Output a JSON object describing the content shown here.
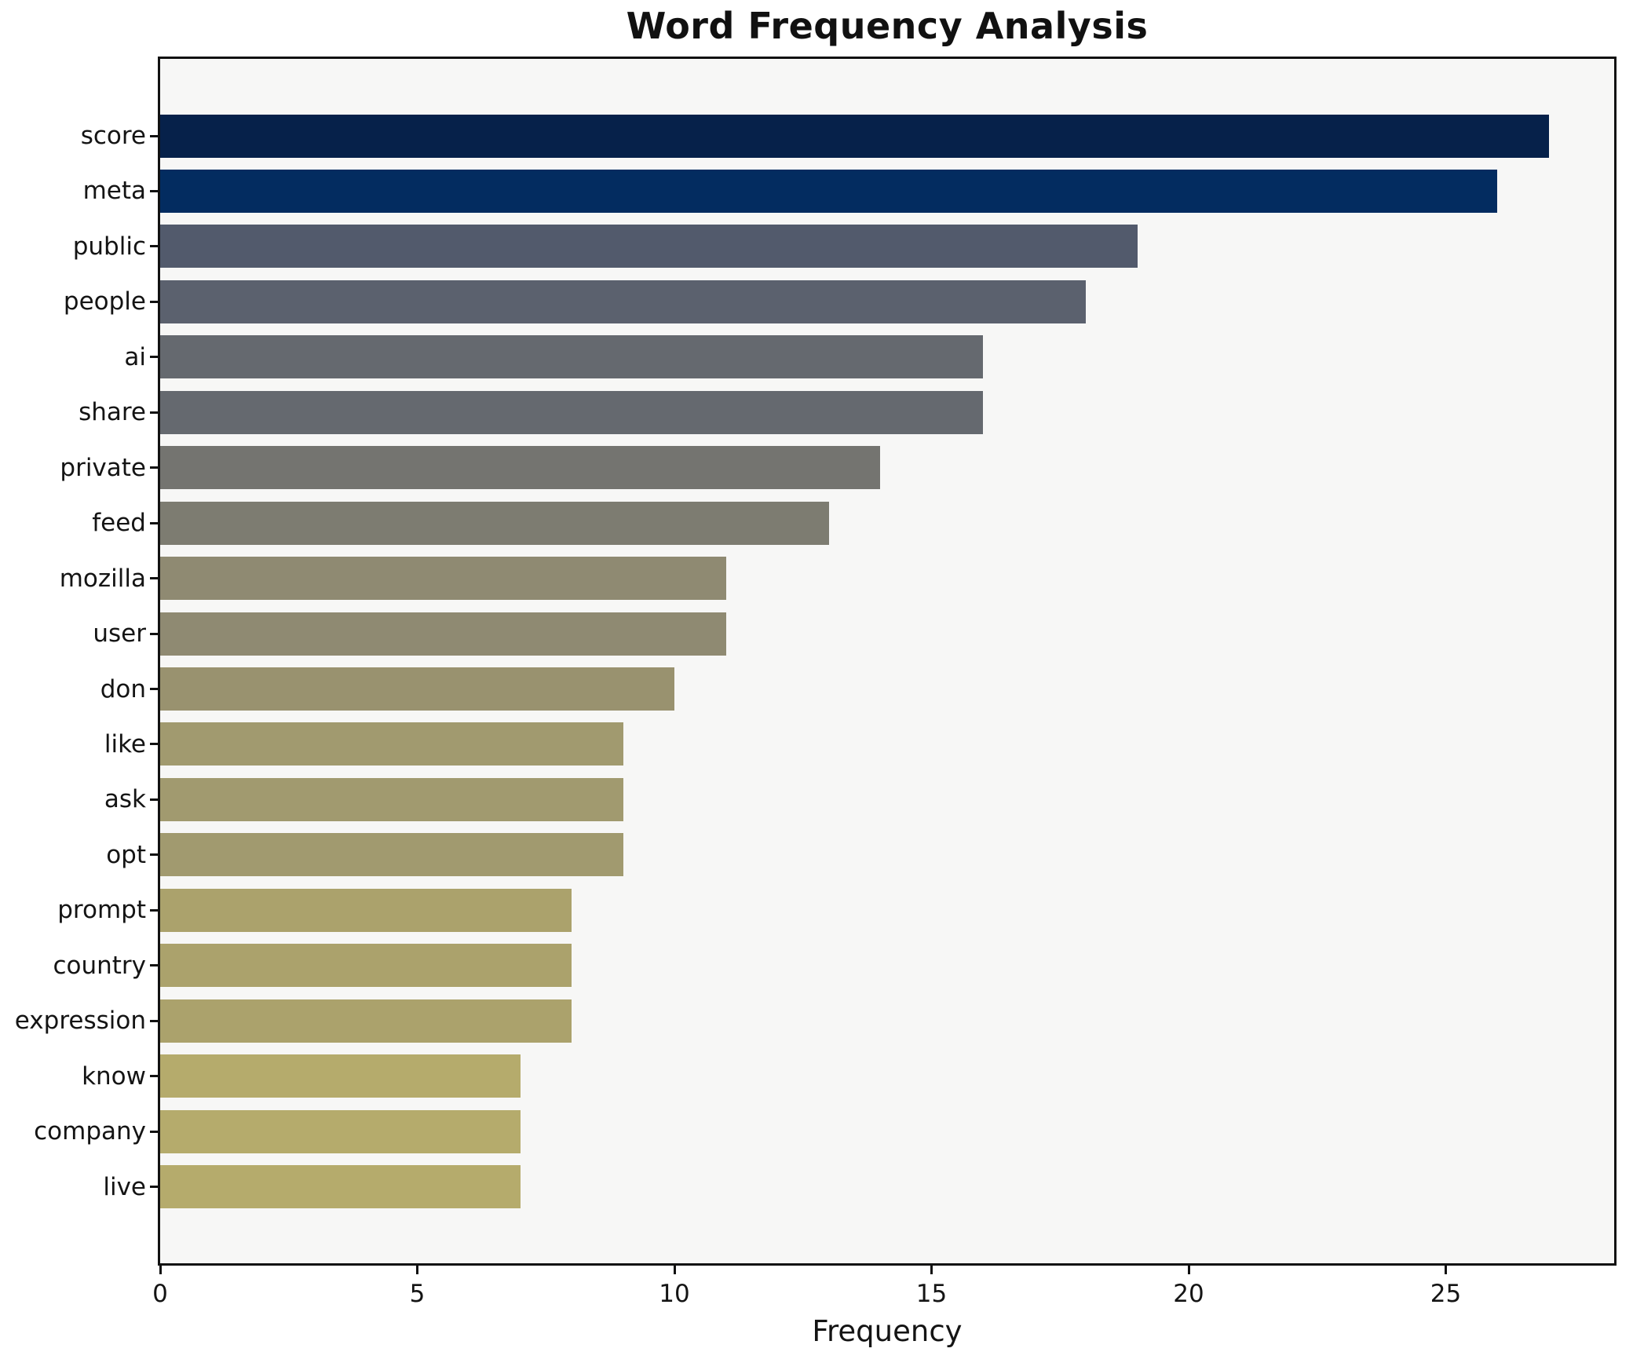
{
  "title": "Word Frequency Analysis",
  "chart_data": {
    "type": "bar",
    "orientation": "horizontal",
    "title": "Word Frequency Analysis",
    "xlabel": "Frequency",
    "ylabel": "",
    "categories": [
      "score",
      "meta",
      "public",
      "people",
      "ai",
      "share",
      "private",
      "feed",
      "mozilla",
      "user",
      "don",
      "like",
      "ask",
      "opt",
      "prompt",
      "country",
      "expression",
      "know",
      "company",
      "live"
    ],
    "values": [
      27,
      26,
      19,
      18,
      16,
      16,
      14,
      13,
      11,
      11,
      10,
      9,
      9,
      9,
      8,
      8,
      8,
      7,
      7,
      7
    ],
    "bar_colors": [
      "#06214a",
      "#032c60",
      "#525a6c",
      "#5b616e",
      "#65696f",
      "#65696f",
      "#747470",
      "#7d7c71",
      "#8f8a72",
      "#8f8a72",
      "#99926f",
      "#a19a6f",
      "#a19a6f",
      "#a19a6f",
      "#aba26c",
      "#aba26c",
      "#aba26c",
      "#b5ab6c",
      "#b5ab6c",
      "#b5ab6c"
    ],
    "xticks": [
      0,
      5,
      10,
      15,
      20,
      25
    ],
    "xlim": [
      0,
      28.35
    ],
    "grid": false,
    "legend": false,
    "colors": {
      "plot_background": "#f7f7f6",
      "figure_background": "#ffffff",
      "spine": "#111111",
      "text": "#141414"
    }
  }
}
